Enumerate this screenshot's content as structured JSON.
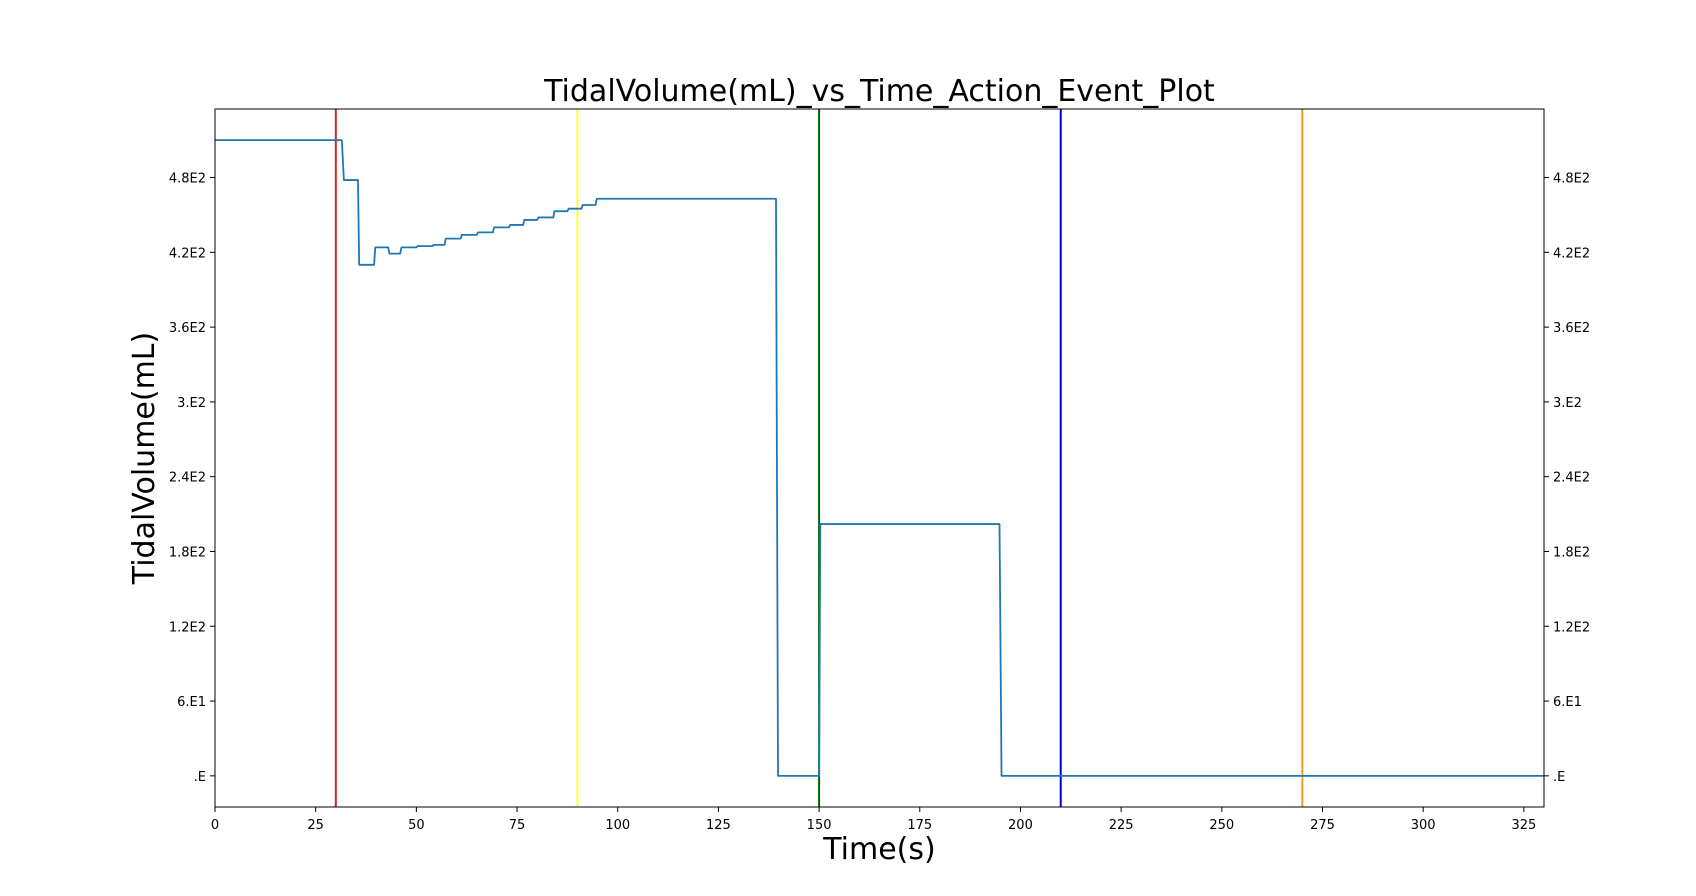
{
  "chart_data": {
    "type": "line",
    "title": "TidalVolume(mL)_vs_Time_Action_Event_Plot",
    "xlabel": "Time(s)",
    "ylabel": "TidalVolume(mL)",
    "xlim": [
      0,
      330
    ],
    "ylim": [
      -25,
      535
    ],
    "x_ticks": [
      0,
      25,
      50,
      75,
      100,
      125,
      150,
      175,
      200,
      225,
      250,
      275,
      300,
      325
    ],
    "x_tick_labels": [
      "0",
      "25",
      "50",
      "75",
      "100",
      "125",
      "150",
      "175",
      "200",
      "225",
      "250",
      "275",
      "300",
      "325"
    ],
    "y_ticks": [
      0,
      60,
      120,
      180,
      240,
      300,
      360,
      420,
      480
    ],
    "y_tick_labels": [
      ".E",
      "6.E1",
      "1.2E2",
      "1.8E2",
      "2.4E2",
      "3.E2",
      "3.6E2",
      "4.2E2",
      "4.8E2"
    ],
    "grid": false,
    "legend": "none",
    "series": [
      {
        "color": "#1f77b4",
        "x": [
          0,
          31.5,
          32,
          35.5,
          35.8,
          39.5,
          39.8,
          43,
          43.3,
          46,
          46.3,
          50,
          50.3,
          54,
          54.3,
          57,
          57.3,
          61,
          61.3,
          65,
          65.3,
          69,
          69.3,
          73,
          73.3,
          76.5,
          76.8,
          80,
          80.3,
          84,
          84.3,
          87.5,
          87.8,
          91,
          91.3,
          94.5,
          94.8,
          139.3,
          139.8,
          150,
          150.3,
          194.8,
          195.3,
          330
        ],
        "y": [
          510,
          510,
          478,
          478,
          410,
          410,
          424,
          424,
          419,
          419,
          424,
          424,
          425,
          425,
          426,
          426,
          431,
          431,
          434,
          434,
          436,
          436,
          440,
          440,
          442,
          442,
          446,
          446,
          448,
          448,
          453,
          453,
          455,
          455,
          458,
          458,
          463,
          463,
          0,
          0,
          202,
          202,
          0,
          0
        ]
      }
    ],
    "event_lines": [
      {
        "x": 30,
        "color": "#d62728"
      },
      {
        "x": 90,
        "color": "#ffff33"
      },
      {
        "x": 150,
        "color": "#006400"
      },
      {
        "x": 210,
        "color": "#0000cd"
      },
      {
        "x": 270,
        "color": "#daa520"
      }
    ]
  }
}
